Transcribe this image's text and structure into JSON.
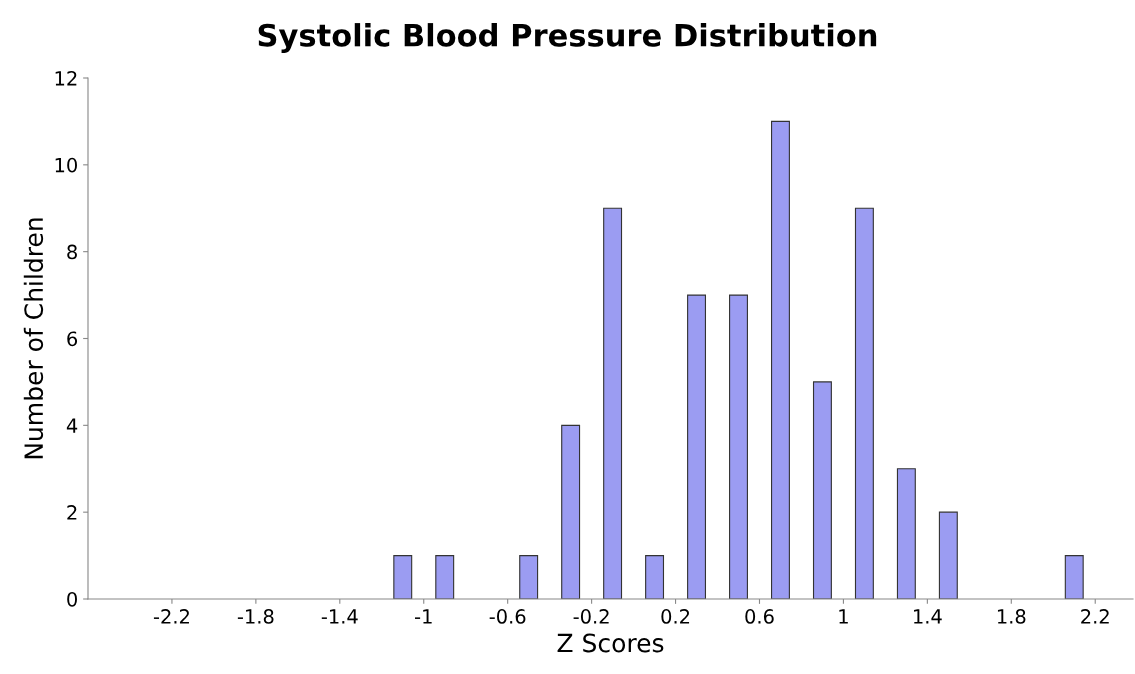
{
  "chart_data": {
    "type": "bar",
    "title": "Systolic Blood Pressure Distribution",
    "xlabel": "Z Scores",
    "ylabel": "Number of Children",
    "x": [
      -1.1,
      -0.9,
      -0.5,
      -0.3,
      -0.1,
      0.1,
      0.3,
      0.5,
      0.7,
      0.9,
      1.1,
      1.3,
      1.5,
      2.1
    ],
    "values": [
      1,
      1,
      1,
      4,
      9,
      1,
      7,
      7,
      11,
      5,
      9,
      3,
      2,
      1
    ],
    "color": "#9b9cf2",
    "xlim": [
      -2.6,
      2.38
    ],
    "xticks": [
      -2.2,
      -1.8,
      -1.4,
      -1,
      -0.6,
      -0.2,
      0.2,
      0.6,
      1,
      1.4,
      1.8,
      2.2
    ],
    "ylim": [
      0,
      12
    ],
    "yticks": [
      0,
      2,
      4,
      6,
      8,
      10,
      12
    ],
    "grid": false
  }
}
